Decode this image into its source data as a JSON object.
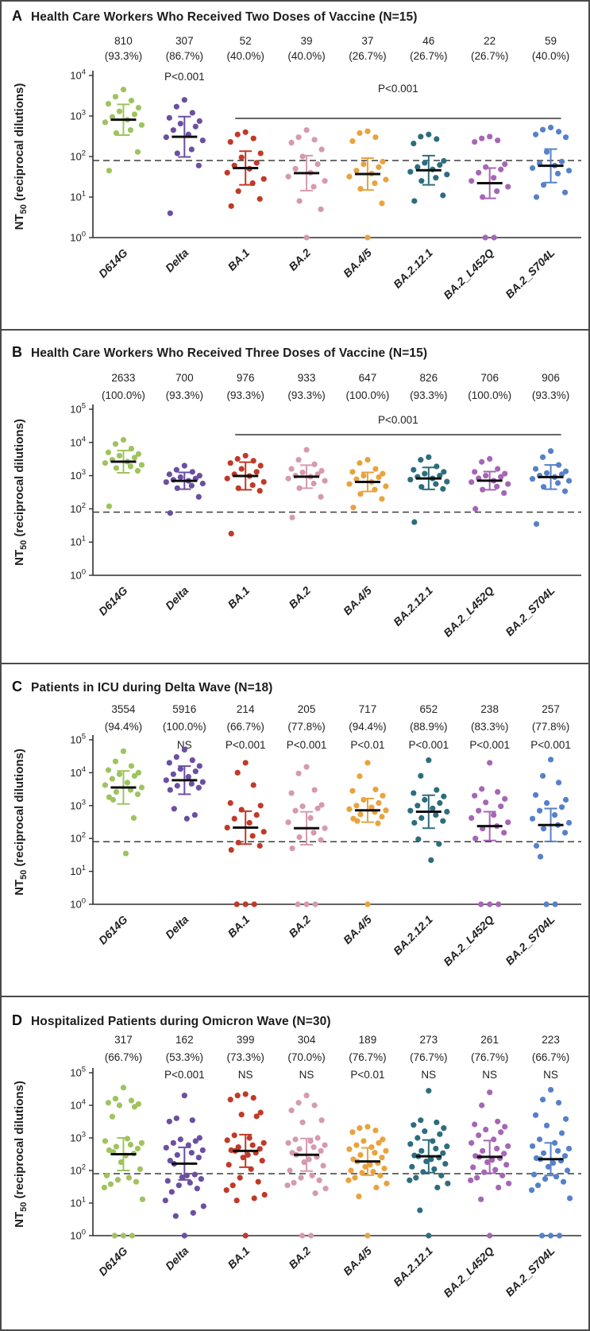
{
  "categories": [
    "D614G",
    "Delta",
    "BA.1",
    "BA.2",
    "BA.4/5",
    "BA.2.12.1",
    "BA.2_L452Q",
    "BA.2_S704L"
  ],
  "variant_colors": [
    "#9fc35e",
    "#6b4fa1",
    "#c03a28",
    "#d59ab0",
    "#e8a33d",
    "#2d6d7e",
    "#a566b5",
    "#5681c9"
  ],
  "threshold_value": 80,
  "ylabel": {
    "text": "NT50 (reciprocal dilutions)",
    "prefix": "NT",
    "sub": "50",
    "suffix": " (reciprocal dilutions)"
  },
  "chart_data": [
    {
      "panel": "A",
      "type": "scatter",
      "title": "Health Care Workers Who Received Two Doses of Vaccine (N=15)",
      "ylim_log10": [
        0,
        4
      ],
      "yticks": [
        "10^0",
        "10^1",
        "10^2",
        "10^3",
        "10^4"
      ],
      "threshold": 80,
      "comparison": {
        "label": "P<0.001",
        "from_index": 2,
        "to_index": 7
      },
      "group_stats": [
        {
          "value": "810",
          "pct": "(93.3%)",
          "p": ""
        },
        {
          "value": "307",
          "pct": "(86.7%)",
          "p": "P<0.001"
        },
        {
          "value": "52",
          "pct": "(40.0%)",
          "p": ""
        },
        {
          "value": "39",
          "pct": "(40.0%)",
          "p": ""
        },
        {
          "value": "37",
          "pct": "(26.7%)",
          "p": ""
        },
        {
          "value": "46",
          "pct": "(26.7%)",
          "p": ""
        },
        {
          "value": "22",
          "pct": "(26.7%)",
          "p": ""
        },
        {
          "value": "59",
          "pct": "(40.0%)",
          "p": ""
        }
      ],
      "values": [
        [
          4500,
          3000,
          2400,
          2000,
          1600,
          1300,
          1100,
          950,
          810,
          700,
          600,
          450,
          380,
          130,
          45
        ],
        [
          2500,
          1700,
          1200,
          900,
          750,
          650,
          550,
          450,
          350,
          300,
          250,
          150,
          120,
          60,
          4
        ],
        [
          400,
          350,
          280,
          230,
          120,
          95,
          70,
          60,
          50,
          40,
          28,
          22,
          14,
          9,
          6
        ],
        [
          450,
          300,
          260,
          220,
          150,
          100,
          65,
          50,
          40,
          32,
          25,
          18,
          8,
          5,
          1
        ],
        [
          420,
          380,
          300,
          240,
          75,
          65,
          55,
          45,
          38,
          32,
          27,
          22,
          16,
          7,
          1
        ],
        [
          350,
          310,
          270,
          210,
          78,
          70,
          62,
          55,
          48,
          42,
          36,
          30,
          25,
          11,
          8
        ],
        [
          310,
          280,
          250,
          230,
          65,
          55,
          48,
          40,
          30,
          25,
          18,
          14,
          10,
          1,
          1
        ],
        [
          520,
          460,
          410,
          350,
          300,
          130,
          75,
          68,
          60,
          52,
          45,
          38,
          20,
          13,
          10
        ]
      ]
    },
    {
      "panel": "B",
      "type": "scatter",
      "title": "Health Care Workers Who Received Three Doses of Vaccine (N=15)",
      "ylim_log10": [
        0,
        5
      ],
      "yticks": [
        "10^0",
        "10^1",
        "10^2",
        "10^3",
        "10^4",
        "10^5"
      ],
      "threshold": 80,
      "comparison": {
        "label": "P<0.001",
        "from_index": 2,
        "to_index": 7
      },
      "group_stats": [
        {
          "value": "2633",
          "pct": "(100.0%)",
          "p": ""
        },
        {
          "value": "700",
          "pct": "(93.3%)",
          "p": ""
        },
        {
          "value": "976",
          "pct": "(93.3%)",
          "p": ""
        },
        {
          "value": "933",
          "pct": "(93.3%)",
          "p": ""
        },
        {
          "value": "647",
          "pct": "(100.0%)",
          "p": ""
        },
        {
          "value": "826",
          "pct": "(93.3%)",
          "p": ""
        },
        {
          "value": "706",
          "pct": "(100.0%)",
          "p": ""
        },
        {
          "value": "906",
          "pct": "(93.3%)",
          "p": ""
        }
      ],
      "values": [
        [
          12000,
          9000,
          6500,
          5000,
          4500,
          4000,
          3500,
          3000,
          2633,
          2400,
          2100,
          1900,
          1700,
          1400,
          120
        ],
        [
          2000,
          1500,
          1300,
          1100,
          1000,
          900,
          820,
          750,
          700,
          640,
          580,
          500,
          420,
          230,
          75
        ],
        [
          4000,
          3200,
          2800,
          2400,
          2000,
          1600,
          1300,
          1100,
          976,
          820,
          650,
          520,
          420,
          350,
          18
        ],
        [
          6000,
          3000,
          2200,
          1600,
          1400,
          1250,
          1100,
          1000,
          933,
          820,
          700,
          580,
          420,
          230,
          55
        ],
        [
          3000,
          2400,
          1600,
          1300,
          1150,
          1000,
          900,
          780,
          647,
          560,
          480,
          380,
          280,
          200,
          110
        ],
        [
          3600,
          3000,
          1900,
          1500,
          1300,
          1150,
          1000,
          920,
          826,
          760,
          660,
          560,
          460,
          400,
          40
        ],
        [
          3200,
          2600,
          1600,
          1300,
          1150,
          1000,
          920,
          830,
          706,
          640,
          560,
          470,
          380,
          300,
          100
        ],
        [
          5500,
          3600,
          2100,
          1600,
          1350,
          1200,
          1100,
          1000,
          906,
          800,
          700,
          600,
          460,
          340,
          35
        ]
      ]
    },
    {
      "panel": "C",
      "type": "scatter",
      "title": "Patients in ICU during Delta Wave (N=18)",
      "ylim_log10": [
        0,
        5
      ],
      "yticks": [
        "10^0",
        "10^1",
        "10^2",
        "10^3",
        "10^4",
        "10^5"
      ],
      "threshold": 80,
      "comparison": null,
      "group_stats": [
        {
          "value": "3554",
          "pct": "(94.4%)",
          "p": ""
        },
        {
          "value": "5916",
          "pct": "(100.0%)",
          "p": "NS"
        },
        {
          "value": "214",
          "pct": "(66.7%)",
          "p": "P<0.001"
        },
        {
          "value": "205",
          "pct": "(77.8%)",
          "p": "P<0.001"
        },
        {
          "value": "717",
          "pct": "(94.4%)",
          "p": "P<0.01"
        },
        {
          "value": "652",
          "pct": "(88.9%)",
          "p": "P<0.001"
        },
        {
          "value": "238",
          "pct": "(83.3%)",
          "p": "P<0.001"
        },
        {
          "value": "257",
          "pct": "(77.8%)",
          "p": "P<0.001"
        }
      ],
      "values": [
        [
          45000,
          22000,
          16000,
          12000,
          10000,
          9000,
          8000,
          6500,
          5000,
          4200,
          3554,
          3000,
          2600,
          2200,
          1800,
          1500,
          420,
          35
        ],
        [
          50000,
          30000,
          24000,
          20000,
          16000,
          13000,
          11000,
          9000,
          7500,
          5916,
          5200,
          4600,
          4000,
          3500,
          3000,
          800,
          520,
          400
        ],
        [
          20000,
          10000,
          4200,
          1200,
          1000,
          750,
          520,
          400,
          300,
          214,
          160,
          120,
          75,
          60,
          45,
          1,
          1,
          1
        ],
        [
          15000,
          9500,
          3000,
          2400,
          1050,
          950,
          820,
          700,
          420,
          310,
          205,
          150,
          110,
          90,
          50,
          1,
          1,
          1
        ],
        [
          20000,
          7800,
          3100,
          2800,
          2000,
          1500,
          1200,
          1000,
          880,
          780,
          717,
          640,
          540,
          460,
          400,
          340,
          290,
          1
        ],
        [
          24000,
          8000,
          3000,
          2400,
          1900,
          1500,
          1200,
          1000,
          820,
          700,
          652,
          520,
          420,
          340,
          300,
          95,
          68,
          22
        ],
        [
          20000,
          3200,
          2600,
          2000,
          1600,
          1250,
          950,
          700,
          520,
          420,
          310,
          238,
          200,
          150,
          100,
          1,
          1,
          1
        ],
        [
          25000,
          8000,
          5000,
          2100,
          1500,
          1200,
          900,
          700,
          520,
          400,
          300,
          257,
          200,
          150,
          60,
          28,
          1,
          1
        ]
      ]
    },
    {
      "panel": "D",
      "type": "scatter",
      "title": "Hospitalized Patients during Omicron Wave (N=30)",
      "ylim_log10": [
        0,
        5
      ],
      "yticks": [
        "10^0",
        "10^1",
        "10^2",
        "10^3",
        "10^4",
        "10^5"
      ],
      "threshold": 80,
      "comparison": null,
      "group_stats": [
        {
          "value": "317",
          "pct": "(66.7%)",
          "p": ""
        },
        {
          "value": "162",
          "pct": "(53.3%)",
          "p": "P<0.001"
        },
        {
          "value": "399",
          "pct": "(73.3%)",
          "p": "NS"
        },
        {
          "value": "304",
          "pct": "(70.0%)",
          "p": "NS"
        },
        {
          "value": "189",
          "pct": "(76.7%)",
          "p": "P<0.01"
        },
        {
          "value": "273",
          "pct": "(76.7%)",
          "p": "NS"
        },
        {
          "value": "261",
          "pct": "(76.7%)",
          "p": "NS"
        },
        {
          "value": "223",
          "pct": "(66.7%)",
          "p": "NS"
        }
      ],
      "values": [
        [
          35000,
          16000,
          14000,
          12000,
          11000,
          10000,
          9000,
          4500,
          950,
          800,
          700,
          620,
          540,
          470,
          420,
          370,
          330,
          290,
          180,
          110,
          70,
          60,
          52,
          45,
          38,
          30,
          13,
          1,
          1,
          1
        ],
        [
          20000,
          4000,
          3500,
          3200,
          1000,
          900,
          800,
          700,
          600,
          500,
          420,
          350,
          300,
          250,
          200,
          160,
          75,
          70,
          62,
          55,
          48,
          42,
          35,
          28,
          22,
          12,
          8,
          5,
          4,
          1
        ],
        [
          22000,
          20000,
          17000,
          15000,
          6000,
          5200,
          4600,
          1200,
          1000,
          850,
          700,
          600,
          520,
          460,
          420,
          399,
          350,
          300,
          250,
          200,
          150,
          110,
          60,
          45,
          35,
          25,
          18,
          14,
          12,
          1
        ],
        [
          20000,
          12000,
          10000,
          7000,
          3500,
          3000,
          1000,
          900,
          800,
          700,
          600,
          520,
          460,
          400,
          350,
          304,
          260,
          220,
          180,
          140,
          100,
          70,
          60,
          50,
          42,
          35,
          28,
          20,
          1,
          1
        ],
        [
          2200,
          2000,
          1700,
          1500,
          900,
          800,
          700,
          600,
          520,
          450,
          400,
          350,
          300,
          250,
          220,
          189,
          170,
          150,
          130,
          115,
          100,
          92,
          85,
          70,
          60,
          50,
          40,
          30,
          16,
          1
        ],
        [
          28000,
          3500,
          3000,
          2500,
          2000,
          1600,
          1300,
          1000,
          800,
          650,
          550,
          470,
          400,
          340,
          290,
          273,
          250,
          220,
          190,
          160,
          130,
          110,
          90,
          70,
          60,
          50,
          40,
          30,
          6,
          1
        ],
        [
          25000,
          10000,
          3200,
          2600,
          2200,
          1800,
          1500,
          1200,
          900,
          700,
          560,
          470,
          400,
          330,
          280,
          261,
          240,
          210,
          180,
          150,
          125,
          105,
          88,
          70,
          60,
          50,
          40,
          30,
          13,
          1
        ],
        [
          30000,
          15000,
          12000,
          5000,
          3800,
          2400,
          1400,
          900,
          700,
          560,
          470,
          400,
          340,
          280,
          240,
          223,
          200,
          170,
          130,
          100,
          75,
          65,
          55,
          45,
          35,
          25,
          14,
          1,
          1,
          1
        ]
      ]
    }
  ]
}
